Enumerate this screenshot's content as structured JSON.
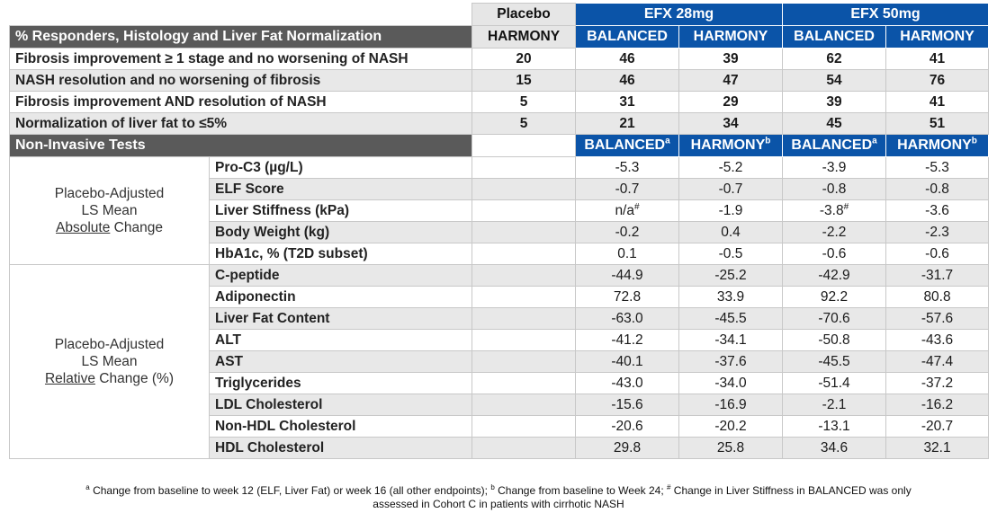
{
  "header": {
    "placebo_label": "Placebo",
    "efx28_label": "EFX 28mg",
    "efx50_label": "EFX 50mg",
    "responders_title": "% Responders, Histology and Liver Fat Normalization",
    "sub_cols": [
      "HARMONY",
      "BALANCED",
      "HARMONY",
      "BALANCED",
      "HARMONY"
    ]
  },
  "responders": [
    {
      "label": "Fibrosis improvement ≥ 1 stage and no worsening of NASH",
      "values": [
        "20",
        "46",
        "39",
        "62",
        "41"
      ]
    },
    {
      "label": "NASH resolution and no worsening of fibrosis",
      "values": [
        "15",
        "46",
        "47",
        "54",
        "76"
      ]
    },
    {
      "label": "Fibrosis improvement AND resolution of NASH",
      "values": [
        "5",
        "31",
        "29",
        "39",
        "41"
      ]
    },
    {
      "label": "Normalization of liver fat to ≤5%",
      "values": [
        "5",
        "21",
        "34",
        "45",
        "51"
      ]
    }
  ],
  "nit": {
    "title": "Non-Invasive Tests",
    "cols": [
      {
        "label": "BALANCED",
        "sup": "a"
      },
      {
        "label": "HARMONY",
        "sup": "b"
      },
      {
        "label": "BALANCED",
        "sup": "a"
      },
      {
        "label": "HARMONY",
        "sup": "b"
      }
    ]
  },
  "absolute": {
    "line1": "Placebo-Adjusted",
    "line2": "LS Mean",
    "line3_u": "Absolute",
    "line3_rest": " Change",
    "rows": [
      {
        "label": "Pro-C3 (µg/L)",
        "values": [
          "-5.3",
          "-5.2",
          "-3.9",
          "-5.3"
        ],
        "sups": [
          "",
          "",
          "",
          ""
        ]
      },
      {
        "label": "ELF Score",
        "values": [
          "-0.7",
          "-0.7",
          "-0.8",
          "-0.8"
        ],
        "sups": [
          "",
          "",
          "",
          ""
        ]
      },
      {
        "label": "Liver Stiffness (kPa)",
        "values": [
          "n/a",
          "-1.9",
          "-3.8",
          "-3.6"
        ],
        "sups": [
          "#",
          "",
          "#",
          ""
        ]
      },
      {
        "label": "Body Weight (kg)",
        "values": [
          "-0.2",
          "0.4",
          "-2.2",
          "-2.3"
        ],
        "sups": [
          "",
          "",
          "",
          ""
        ]
      },
      {
        "label": "HbA1c, % (T2D subset)",
        "values": [
          "0.1",
          "-0.5",
          "-0.6",
          "-0.6"
        ],
        "sups": [
          "",
          "",
          "",
          ""
        ]
      }
    ]
  },
  "relative": {
    "line1": "Placebo-Adjusted",
    "line2": "LS Mean",
    "line3_u": "Relative",
    "line3_rest": " Change (%)",
    "rows": [
      {
        "label": "C-peptide",
        "values": [
          "-44.9",
          "-25.2",
          "-42.9",
          "-31.7"
        ]
      },
      {
        "label": "Adiponectin",
        "values": [
          "72.8",
          "33.9",
          "92.2",
          "80.8"
        ]
      },
      {
        "label": "Liver Fat Content",
        "values": [
          "-63.0",
          "-45.5",
          "-70.6",
          "-57.6"
        ]
      },
      {
        "label": "ALT",
        "values": [
          "-41.2",
          "-34.1",
          "-50.8",
          "-43.6"
        ]
      },
      {
        "label": "AST",
        "values": [
          "-40.1",
          "-37.6",
          "-45.5",
          "-47.4"
        ]
      },
      {
        "label": "Triglycerides",
        "values": [
          "-43.0",
          "-34.0",
          "-51.4",
          "-37.2"
        ]
      },
      {
        "label": "LDL Cholesterol",
        "values": [
          "-15.6",
          "-16.9",
          "-2.1",
          "-16.2"
        ]
      },
      {
        "label": "Non-HDL Cholesterol",
        "values": [
          "-20.6",
          "-20.2",
          "-13.1",
          "-20.7"
        ]
      },
      {
        "label": "HDL Cholesterol",
        "values": [
          "29.8",
          "25.8",
          "34.6",
          "32.1"
        ]
      }
    ]
  },
  "footnote": {
    "sup_a": "a",
    "text_a": " Change from baseline to week 12 (ELF, Liver Fat) or week 16 (all other endpoints); ",
    "sup_b": "b",
    "text_b": " Change from baseline to Week 24; ",
    "sup_hash": "#",
    "text_hash": " Change in Liver Stiffness in BALANCED was only",
    "line2": "assessed in Cohort C in patients with cirrhotic NASH"
  }
}
